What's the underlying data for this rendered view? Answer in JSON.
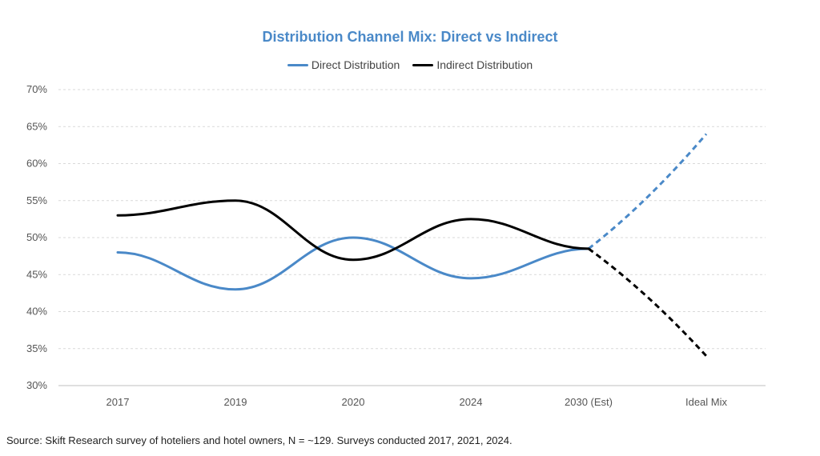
{
  "chart_data": {
    "type": "line",
    "title": "Distribution Channel Mix: Direct vs Indirect",
    "categories": [
      "2017",
      "2019",
      "2020",
      "2024",
      "2030 (Est)",
      "Ideal Mix"
    ],
    "yticks": [
      "30%",
      "35%",
      "40%",
      "45%",
      "50%",
      "55%",
      "60%",
      "65%",
      "70%"
    ],
    "ylim": [
      30,
      70
    ],
    "grid": true,
    "legend_position": "top",
    "series": [
      {
        "name": "Direct Distribution",
        "color": "#4a89c8",
        "values": [
          48,
          43,
          50,
          44.5,
          48.5,
          64
        ],
        "projected_from_index": 4
      },
      {
        "name": "Indirect Distribution",
        "color": "#000000",
        "values": [
          53,
          55,
          47,
          52.5,
          48.5,
          34
        ],
        "projected_from_index": 4
      }
    ]
  },
  "source": "Source: Skift Research survey of hoteliers and hotel owners, N = ~129. Surveys conducted 2017, 2021, 2024."
}
